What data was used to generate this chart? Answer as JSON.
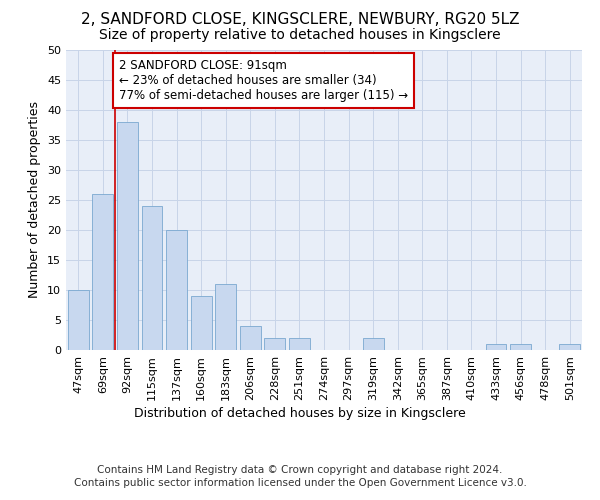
{
  "title_line1": "2, SANDFORD CLOSE, KINGSCLERE, NEWBURY, RG20 5LZ",
  "title_line2": "Size of property relative to detached houses in Kingsclere",
  "xlabel": "Distribution of detached houses by size in Kingsclere",
  "ylabel": "Number of detached properties",
  "categories": [
    "47sqm",
    "69sqm",
    "92sqm",
    "115sqm",
    "137sqm",
    "160sqm",
    "183sqm",
    "206sqm",
    "228sqm",
    "251sqm",
    "274sqm",
    "297sqm",
    "319sqm",
    "342sqm",
    "365sqm",
    "387sqm",
    "410sqm",
    "433sqm",
    "456sqm",
    "478sqm",
    "501sqm"
  ],
  "values": [
    10,
    26,
    38,
    24,
    20,
    9,
    11,
    4,
    2,
    2,
    0,
    0,
    2,
    0,
    0,
    0,
    0,
    1,
    1,
    0,
    1
  ],
  "bar_color": "#c8d8ef",
  "bar_edge_color": "#7aa8d0",
  "vline_x": 1.5,
  "vline_color": "#cc0000",
  "annotation_text": "2 SANDFORD CLOSE: 91sqm\n← 23% of detached houses are smaller (34)\n77% of semi-detached houses are larger (115) →",
  "annotation_box_color": "#ffffff",
  "annotation_box_edge_color": "#cc0000",
  "ylim": [
    0,
    50
  ],
  "yticks": [
    0,
    5,
    10,
    15,
    20,
    25,
    30,
    35,
    40,
    45,
    50
  ],
  "grid_color": "#c8d4e8",
  "bg_color": "#e8eef8",
  "footer_line1": "Contains HM Land Registry data © Crown copyright and database right 2024.",
  "footer_line2": "Contains public sector information licensed under the Open Government Licence v3.0.",
  "title_fontsize": 11,
  "subtitle_fontsize": 10,
  "xlabel_fontsize": 9,
  "ylabel_fontsize": 9,
  "tick_fontsize": 8,
  "annotation_fontsize": 8.5,
  "footer_fontsize": 7.5
}
